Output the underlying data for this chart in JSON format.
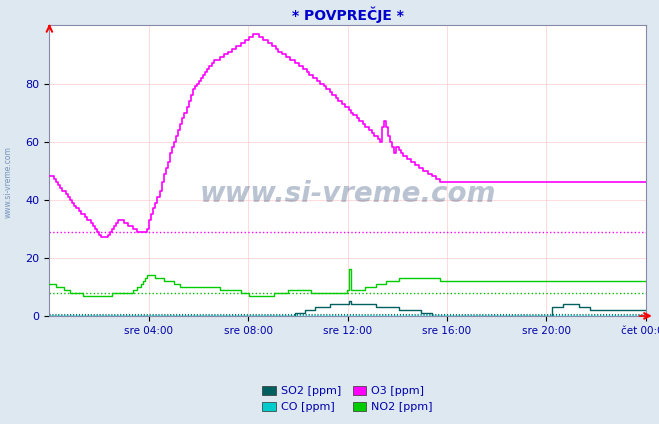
{
  "title": "* POVPREČJE *",
  "title_color": "#0000cc",
  "bg_color": "#dde8f0",
  "plot_bg_color": "#ffffff",
  "grid_color": "#ffcccc",
  "xlabel_color": "#0000aa",
  "ylabel_color": "#0000aa",
  "watermark_text": "www.si-vreme.com",
  "watermark_color": "#1a3a6a",
  "side_text": "www.si-vreme.com",
  "ylim": [
    0,
    100
  ],
  "yticks": [
    0,
    20,
    40,
    60,
    80
  ],
  "xtick_labels": [
    "sre 04:00",
    "sre 08:00",
    "sre 12:00",
    "sre 16:00",
    "sre 20:00",
    "čet 00:00"
  ],
  "o3_hline": 29,
  "o3_hline_color": "#ff00ff",
  "no2_hline": 8,
  "no2_hline_color": "#00bb00",
  "so2_hline": 0.5,
  "so2_hline_color": "#007070",
  "co_hline": 0.3,
  "co_hline_color": "#00aaaa",
  "so2_color": "#006060",
  "co_color": "#00cccc",
  "o3_color": "#ff00ff",
  "no2_color": "#00cc00",
  "legend_labels": [
    "SO2 [ppm]",
    "CO [ppm]",
    "O3 [ppm]",
    "NO2 [ppm]"
  ],
  "legend_colors": [
    "#006060",
    "#00cccc",
    "#ff00ff",
    "#00cc00"
  ],
  "o3_data": [
    48,
    48,
    47,
    46,
    45,
    44,
    43,
    43,
    42,
    41,
    40,
    39,
    38,
    37,
    36,
    35,
    35,
    34,
    33,
    33,
    32,
    31,
    30,
    29,
    28,
    27,
    27,
    27,
    28,
    29,
    30,
    31,
    32,
    33,
    33,
    33,
    32,
    32,
    31,
    31,
    30,
    30,
    29,
    29,
    29,
    29,
    29,
    30,
    33,
    35,
    37,
    39,
    41,
    43,
    46,
    49,
    51,
    53,
    56,
    58,
    60,
    62,
    64,
    66,
    68,
    70,
    72,
    74,
    76,
    78,
    79,
    80,
    81,
    82,
    83,
    84,
    85,
    86,
    87,
    88,
    88,
    88,
    89,
    89,
    90,
    90,
    91,
    91,
    92,
    92,
    93,
    93,
    94,
    94,
    95,
    95,
    96,
    96,
    97,
    97,
    97,
    96,
    96,
    95,
    95,
    94,
    94,
    93,
    93,
    92,
    91,
    91,
    90,
    90,
    89,
    89,
    88,
    88,
    87,
    87,
    86,
    86,
    85,
    85,
    84,
    83,
    83,
    82,
    82,
    81,
    80,
    80,
    79,
    78,
    78,
    77,
    76,
    76,
    75,
    74,
    74,
    73,
    72,
    72,
    71,
    70,
    69,
    69,
    68,
    67,
    67,
    66,
    65,
    65,
    64,
    63,
    62,
    62,
    61,
    60,
    65,
    67,
    65,
    62,
    60,
    58,
    56,
    58,
    57,
    56,
    55,
    55,
    54,
    54,
    53,
    53,
    52,
    52,
    51,
    51,
    50,
    50,
    49,
    49,
    48,
    48,
    47,
    47,
    46,
    46,
    46,
    46,
    46,
    46,
    46,
    46,
    46,
    46,
    46,
    46,
    46,
    46,
    46,
    46,
    46,
    46,
    46,
    46,
    46,
    46,
    46,
    46,
    46,
    46,
    46,
    46,
    46,
    46,
    46,
    46,
    46,
    46,
    46,
    46,
    46,
    46,
    46,
    46,
    46,
    46,
    46,
    46,
    46,
    46,
    46,
    46,
    46,
    46,
    46,
    46,
    46,
    46,
    46,
    46,
    46,
    46,
    46,
    46,
    46,
    46,
    46,
    46,
    46,
    46,
    46,
    46,
    46,
    46,
    46,
    46,
    46,
    46,
    46,
    46,
    46,
    46,
    46,
    46,
    46,
    46,
    46,
    46,
    46,
    46,
    46,
    46,
    46,
    46,
    46,
    46,
    46,
    46,
    46,
    46,
    46,
    46,
    46,
    46
  ],
  "no2_data": [
    11,
    11,
    11,
    10,
    10,
    10,
    10,
    9,
    9,
    9,
    8,
    8,
    8,
    8,
    8,
    8,
    7,
    7,
    7,
    7,
    7,
    7,
    7,
    7,
    7,
    7,
    7,
    7,
    7,
    7,
    8,
    8,
    8,
    8,
    8,
    8,
    8,
    8,
    8,
    8,
    9,
    9,
    10,
    10,
    11,
    12,
    13,
    14,
    14,
    14,
    14,
    13,
    13,
    13,
    13,
    12,
    12,
    12,
    12,
    12,
    11,
    11,
    11,
    10,
    10,
    10,
    10,
    10,
    10,
    10,
    10,
    10,
    10,
    10,
    10,
    10,
    10,
    10,
    10,
    10,
    10,
    10,
    9,
    9,
    9,
    9,
    9,
    9,
    9,
    9,
    9,
    9,
    8,
    8,
    8,
    8,
    7,
    7,
    7,
    7,
    7,
    7,
    7,
    7,
    7,
    7,
    7,
    7,
    8,
    8,
    8,
    8,
    8,
    8,
    8,
    9,
    9,
    9,
    9,
    9,
    9,
    9,
    9,
    9,
    9,
    9,
    8,
    8,
    8,
    8,
    8,
    8,
    8,
    8,
    8,
    8,
    8,
    8,
    8,
    8,
    8,
    8,
    8,
    9,
    16,
    9,
    9,
    9,
    9,
    9,
    9,
    9,
    10,
    10,
    10,
    10,
    10,
    11,
    11,
    11,
    11,
    11,
    12,
    12,
    12,
    12,
    12,
    12,
    13,
    13,
    13,
    13,
    13,
    13,
    13,
    13,
    13,
    13,
    13,
    13,
    13,
    13,
    13,
    13,
    13,
    13,
    13,
    13,
    12,
    12,
    12,
    12,
    12,
    12,
    12,
    12,
    12,
    12,
    12,
    12,
    12,
    12,
    12,
    12,
    12,
    12,
    12,
    12,
    12,
    12,
    12,
    12,
    12,
    12,
    12,
    12,
    12,
    12,
    12,
    12,
    12,
    12,
    12,
    12,
    12,
    12,
    12,
    12,
    12,
    12,
    12,
    12,
    12,
    12,
    12,
    12,
    12,
    12,
    12,
    12,
    12,
    12,
    12,
    12,
    12,
    12,
    12,
    12,
    12,
    12,
    12,
    12,
    12,
    12,
    12,
    12,
    12,
    12,
    12,
    12,
    12,
    12,
    12,
    12,
    12,
    12,
    12,
    12,
    12,
    12,
    12,
    12,
    12,
    12,
    12,
    12,
    12,
    12,
    12,
    12,
    12,
    12,
    12,
    12,
    12,
    12,
    12,
    12
  ],
  "so2_data": [
    0,
    0,
    0,
    0,
    0,
    0,
    0,
    0,
    0,
    0,
    0,
    0,
    0,
    0,
    0,
    0,
    0,
    0,
    0,
    0,
    0,
    0,
    0,
    0,
    0,
    0,
    0,
    0,
    0,
    0,
    0,
    0,
    0,
    0,
    0,
    0,
    0,
    0,
    0,
    0,
    0,
    0,
    0,
    0,
    0,
    0,
    0,
    0,
    0,
    0,
    0,
    0,
    0,
    0,
    0,
    0,
    0,
    0,
    0,
    0,
    0,
    0,
    0,
    0,
    0,
    0,
    0,
    0,
    0,
    0,
    0,
    0,
    0,
    0,
    0,
    0,
    0,
    0,
    0,
    0,
    0,
    0,
    0,
    0,
    0,
    0,
    0,
    0,
    0,
    0,
    0,
    0,
    0,
    0,
    0,
    0,
    0,
    0,
    0,
    0,
    0,
    0,
    0,
    0,
    0,
    0,
    0,
    0,
    0,
    0,
    0,
    0,
    0,
    0,
    0,
    0,
    0,
    0,
    1,
    1,
    1,
    1,
    1,
    2,
    2,
    2,
    2,
    2,
    3,
    3,
    3,
    3,
    3,
    3,
    3,
    4,
    4,
    4,
    4,
    4,
    4,
    4,
    4,
    4,
    5,
    4,
    4,
    4,
    4,
    4,
    4,
    4,
    4,
    4,
    4,
    4,
    4,
    3,
    3,
    3,
    3,
    3,
    3,
    3,
    3,
    3,
    3,
    3,
    2,
    2,
    2,
    2,
    2,
    2,
    2,
    2,
    2,
    2,
    2,
    1,
    1,
    1,
    1,
    1,
    0,
    0,
    0,
    0,
    0,
    0,
    0,
    0,
    0,
    0,
    0,
    0,
    0,
    0,
    0,
    0,
    0,
    0,
    0,
    0,
    0,
    0,
    0,
    0,
    0,
    0,
    0,
    0,
    0,
    0,
    0,
    0,
    0,
    0,
    0,
    0,
    0,
    0,
    0,
    0,
    0,
    0,
    0,
    0,
    0,
    0,
    0,
    0,
    0,
    0,
    0,
    0,
    0,
    0,
    0,
    0,
    0,
    0,
    3,
    3,
    3,
    3,
    3,
    4,
    4,
    4,
    4,
    4,
    4,
    4,
    4,
    3,
    3,
    3,
    3,
    3,
    2,
    2,
    2,
    2,
    2,
    2,
    2,
    2,
    2,
    2,
    2,
    2,
    2,
    2,
    2,
    2,
    2,
    2,
    2,
    2,
    2,
    2,
    2,
    2,
    2,
    2,
    2,
    2
  ],
  "co_data": [
    0,
    0,
    0,
    0,
    0,
    0,
    0,
    0,
    0,
    0,
    0,
    0,
    0,
    0,
    0,
    0,
    0,
    0,
    0,
    0,
    0,
    0,
    0,
    0,
    0,
    0,
    0,
    0,
    0,
    0,
    0,
    0,
    0,
    0,
    0,
    0,
    0,
    0,
    0,
    0,
    0,
    0,
    0,
    0,
    0,
    0,
    0,
    0,
    0,
    0,
    0,
    0,
    0,
    0,
    0,
    0,
    0,
    0,
    0,
    0,
    0,
    0,
    0,
    0,
    0,
    0,
    0,
    0,
    0,
    0,
    0,
    0,
    0,
    0,
    0,
    0,
    0,
    0,
    0,
    0,
    0,
    0,
    0,
    0,
    0,
    0,
    0,
    0,
    0,
    0,
    0,
    0,
    0,
    0,
    0,
    0,
    0,
    0,
    0,
    0,
    0,
    0,
    0,
    0,
    0,
    0,
    0,
    0,
    0,
    0,
    0,
    0,
    0,
    0,
    0,
    0,
    0,
    0,
    0,
    0,
    0,
    0,
    0,
    0,
    0,
    0,
    0,
    0,
    0,
    0,
    0,
    0,
    0,
    0,
    0,
    0,
    0,
    0,
    0,
    0,
    0,
    0,
    0,
    0,
    0,
    0,
    0,
    0,
    0,
    0,
    0,
    0,
    0,
    0,
    0,
    0,
    0,
    0,
    0,
    0,
    0,
    0,
    0,
    0,
    0,
    0,
    0,
    0,
    0,
    0,
    0,
    0,
    0,
    0,
    0,
    0,
    0,
    0,
    0,
    0,
    0,
    0,
    0,
    0,
    0,
    0,
    0,
    0,
    0,
    0,
    0,
    0,
    0,
    0,
    0,
    0,
    0,
    0,
    0,
    0,
    0,
    0,
    0,
    0,
    0,
    0,
    0,
    0,
    0,
    0,
    0,
    0,
    0,
    0,
    0,
    0,
    0,
    0,
    0,
    0,
    0,
    0,
    0,
    0,
    0,
    0,
    0,
    0,
    0,
    0,
    0,
    0,
    0,
    0,
    0,
    0,
    0,
    0,
    0,
    0,
    0,
    0,
    0,
    0,
    0,
    0,
    0,
    0,
    0,
    0,
    0,
    0,
    0,
    0,
    0,
    0,
    0,
    0,
    0,
    0,
    0,
    0,
    0,
    0,
    0,
    0,
    0,
    0,
    0,
    0,
    0,
    0,
    0,
    0,
    0,
    0,
    0,
    0,
    0,
    0,
    0,
    0,
    0,
    0,
    0,
    0,
    0,
    0
  ]
}
